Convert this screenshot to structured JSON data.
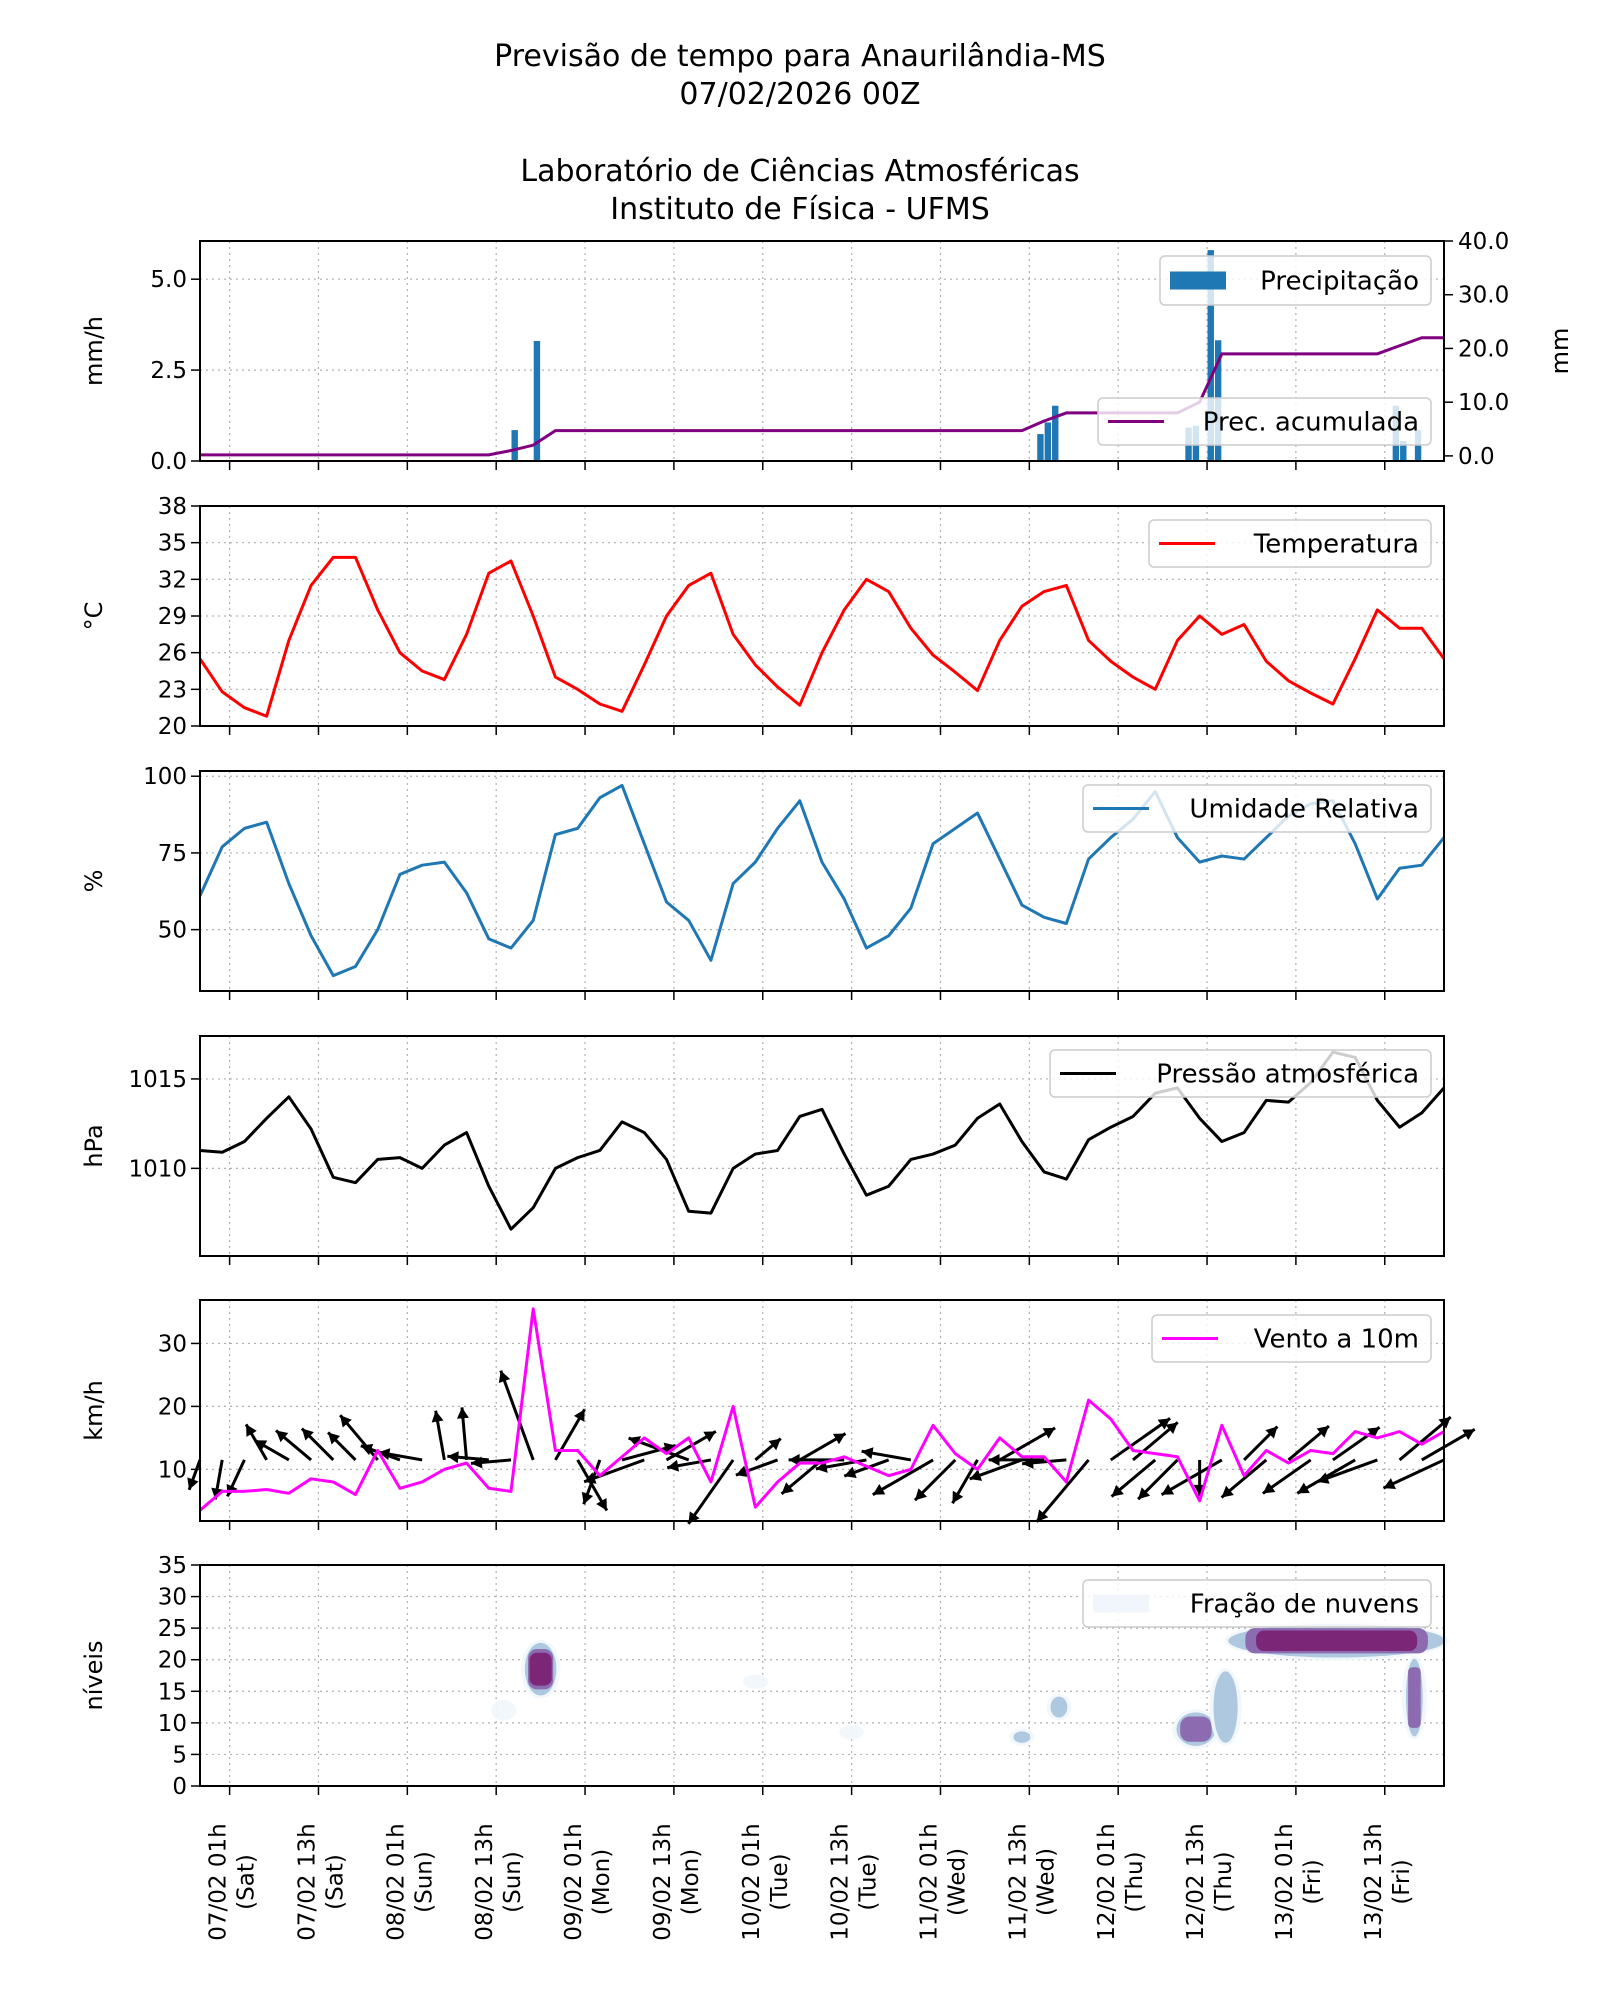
{
  "header": {
    "title_line1": "Previsão de tempo para Anaurilândia-MS",
    "title_line2": "07/02/2026 00Z",
    "title_line3": "Laboratório de Ciências Atmosféricas",
    "title_line4": "Instituto de Física - UFMS"
  },
  "x_axis": {
    "ticks": [
      "07/02 01h",
      "07/02 13h",
      "08/02 01h",
      "08/02 13h",
      "09/02 01h",
      "09/02 13h",
      "10/02 01h",
      "10/02 13h",
      "11/02 01h",
      "11/02 13h",
      "12/02 01h",
      "12/02 13h",
      "13/02 01h",
      "13/02 13h"
    ],
    "tick_days": [
      "(Sat)",
      "(Sat)",
      "(Sun)",
      "(Sun)",
      "(Mon)",
      "(Mon)",
      "(Tue)",
      "(Tue)",
      "(Wed)",
      "(Wed)",
      "(Thu)",
      "(Thu)",
      "(Fri)",
      "(Fri)"
    ],
    "range": [
      "06/02 21h",
      "13/02 21h"
    ],
    "grid": true
  },
  "times": [
    "06/02 21h",
    "07/02 00h",
    "07/02 03h",
    "07/02 06h",
    "07/02 09h",
    "07/02 12h",
    "07/02 15h",
    "07/02 18h",
    "07/02 21h",
    "08/02 00h",
    "08/02 03h",
    "08/02 06h",
    "08/02 09h",
    "08/02 12h",
    "08/02 15h",
    "08/02 18h",
    "08/02 21h",
    "09/02 00h",
    "09/02 03h",
    "09/02 06h",
    "09/02 09h",
    "09/02 12h",
    "09/02 15h",
    "09/02 18h",
    "09/02 21h",
    "10/02 00h",
    "10/02 03h",
    "10/02 06h",
    "10/02 09h",
    "10/02 12h",
    "10/02 15h",
    "10/02 18h",
    "10/02 21h",
    "11/02 00h",
    "11/02 03h",
    "11/02 06h",
    "11/02 09h",
    "11/02 12h",
    "11/02 15h",
    "11/02 18h",
    "11/02 21h",
    "12/02 00h",
    "12/02 03h",
    "12/02 06h",
    "12/02 09h",
    "12/02 12h",
    "12/02 15h",
    "12/02 18h",
    "12/02 21h",
    "13/02 00h",
    "13/02 03h",
    "13/02 06h",
    "13/02 09h",
    "13/02 12h",
    "13/02 15h",
    "13/02 18h",
    "13/02 21h"
  ],
  "chart_data": [
    {
      "type": "bar",
      "ylabel": "mm/h",
      "ylim": [
        0,
        6.05
      ],
      "yticks": [
        0,
        2.5,
        5.0
      ],
      "ytick_labels": [
        "0.0",
        "2.5",
        "5.0"
      ],
      "right_ylabel": "mm",
      "right_ylim": [
        -0.95,
        40
      ],
      "right_yticks": [
        0,
        10,
        20,
        30,
        40
      ],
      "right_ytick_labels": [
        "0.0",
        "10.0",
        "20.0",
        "30.0",
        "40.0"
      ],
      "bars": {
        "name": "Precipitação",
        "color": "#1f77b4",
        "times": [
          "08/02 15h",
          "08/02 18h",
          "11/02 14h",
          "11/02 15h",
          "11/02 16h",
          "12/02 10h",
          "12/02 11h",
          "12/02 13h",
          "12/02 14h",
          "13/02 14h",
          "13/02 15h",
          "13/02 17h"
        ],
        "values": [
          0.85,
          3.3,
          0.74,
          1.06,
          1.52,
          0.92,
          0.97,
          5.8,
          3.32,
          1.52,
          0.55,
          0.85
        ]
      },
      "line": {
        "name": "Prec. acumulada",
        "color": "#800080",
        "axis": "right",
        "values": [
          0.2,
          0.2,
          0.2,
          0.2,
          0.2,
          0.2,
          0.2,
          0.2,
          0.2,
          0.2,
          0.2,
          0.2,
          0.2,
          0.2,
          1.0,
          2.0,
          4.7,
          4.7,
          4.7,
          4.7,
          4.7,
          4.7,
          4.7,
          4.7,
          4.7,
          4.7,
          4.7,
          4.7,
          4.7,
          4.7,
          4.7,
          4.7,
          4.7,
          4.7,
          4.7,
          4.7,
          4.7,
          4.7,
          6.5,
          8.0,
          8.0,
          8.0,
          8.0,
          8.0,
          8.0,
          10.0,
          19.0,
          19.0,
          19.0,
          19.0,
          19.0,
          19.0,
          19.0,
          19.0,
          20.5,
          22.0,
          22.0
        ]
      }
    },
    {
      "type": "line",
      "ylabel": "°C",
      "ylim": [
        20,
        38
      ],
      "yticks": [
        20,
        23,
        26,
        29,
        32,
        35,
        38
      ],
      "ytick_labels": [
        "20",
        "23",
        "26",
        "29",
        "32",
        "35",
        "38"
      ],
      "series": [
        {
          "name": "Temperatura",
          "color": "#ff0000",
          "values": [
            25.5,
            22.8,
            21.5,
            20.8,
            27,
            31.5,
            33.8,
            33.8,
            29.5,
            26,
            24.5,
            23.8,
            27.5,
            32.5,
            33.5,
            29,
            24,
            23,
            21.8,
            21.2,
            25,
            29,
            31.5,
            32.5,
            27.5,
            25,
            23.2,
            21.7,
            26,
            29.5,
            32,
            31,
            28,
            25.8,
            24.4,
            22.9,
            27,
            29.8,
            31,
            31.5,
            27,
            25.3,
            24,
            23,
            27,
            29,
            27.5,
            28.3,
            25.3,
            23.7,
            22.7,
            21.8,
            25.5,
            29.5,
            28,
            28,
            25.5
          ]
        }
      ]
    },
    {
      "type": "line",
      "ylabel": "%",
      "ylim": [
        30,
        101.7
      ],
      "yticks": [
        50,
        75,
        100
      ],
      "ytick_labels": [
        "50",
        "75",
        "100"
      ],
      "series": [
        {
          "name": "Umidade Relativa",
          "color": "#1f77b4",
          "values": [
            61,
            77,
            83,
            85,
            65,
            48,
            35,
            38,
            50,
            68,
            71,
            72,
            62,
            47,
            44,
            53,
            81,
            83,
            93,
            97,
            78,
            59,
            53,
            40,
            65,
            72,
            83,
            92,
            72,
            60,
            44,
            48,
            57,
            78,
            83,
            88,
            73,
            58,
            54,
            52,
            73,
            80,
            86,
            95,
            80,
            72,
            74,
            73,
            80,
            87,
            91,
            92,
            78,
            60,
            70,
            71,
            80
          ]
        }
      ]
    },
    {
      "type": "line",
      "ylabel": "hPa",
      "ylim": [
        1005.1,
        1017.4
      ],
      "yticks": [
        1010,
        1015
      ],
      "ytick_labels": [
        "1010",
        "1015"
      ],
      "series": [
        {
          "name": "Pressão atmosférica",
          "color": "#000000",
          "values": [
            1011,
            1010.9,
            1011.5,
            1012.8,
            1014,
            1012.2,
            1009.5,
            1009.2,
            1010.5,
            1010.6,
            1010,
            1011.3,
            1012,
            1009,
            1006.6,
            1007.8,
            1010,
            1010.6,
            1011,
            1012.6,
            1012,
            1010.5,
            1007.6,
            1007.5,
            1010,
            1010.8,
            1011,
            1012.9,
            1013.3,
            1010.8,
            1008.5,
            1009,
            1010.5,
            1010.8,
            1011.3,
            1012.8,
            1013.6,
            1011.5,
            1009.8,
            1009.4,
            1011.6,
            1012.3,
            1012.9,
            1014.2,
            1014.5,
            1012.8,
            1011.5,
            1012,
            1013.8,
            1013.7,
            1014.8,
            1016.5,
            1016.2,
            1013.8,
            1012.3,
            1013.1,
            1014.5
          ]
        }
      ]
    },
    {
      "type": "line",
      "ylabel": "km/h",
      "ylim": [
        1.8,
        36.9
      ],
      "yticks": [
        10,
        20,
        30
      ],
      "ytick_labels": [
        "10",
        "20",
        "30"
      ],
      "series": [
        {
          "name": "Vento a 10m",
          "color": "#ff00ff",
          "values": [
            3.5,
            6.5,
            6.5,
            6.8,
            6.2,
            8.5,
            8,
            6,
            13,
            7,
            8,
            10,
            11,
            7,
            6.5,
            35.5,
            13,
            13,
            9,
            12,
            15,
            12.5,
            15,
            8,
            20,
            4,
            8,
            11,
            11,
            12,
            10.5,
            9,
            10,
            17,
            12.5,
            10,
            15,
            12,
            12,
            8,
            21,
            18,
            13,
            12.5,
            12,
            5,
            17,
            9,
            13,
            11,
            13,
            12.5,
            16,
            15,
            16,
            14,
            16
          ]
        }
      ],
      "wind_arrows": {
        "color": "#000000",
        "direction_deg": [
          250,
          260,
          245,
          120,
          150,
          140,
          135,
          135,
          130,
          160,
          170,
          100,
          95,
          175,
          185,
          110,
          60,
          300,
          250,
          15,
          200,
          30,
          160,
          190,
          235,
          40,
          200,
          30,
          220,
          180,
          190,
          200,
          170,
          210,
          225,
          240,
          30,
          200,
          180,
          185,
          230,
          35,
          40,
          220,
          225,
          270,
          210,
          45,
          220,
          40,
          215,
          35,
          210,
          200,
          40,
          30,
          205
        ]
      }
    },
    {
      "type": "heatmap",
      "ylabel": "níveis",
      "ylim": [
        0,
        35
      ],
      "yticks": [
        0,
        5,
        10,
        15,
        20,
        25,
        30,
        35
      ],
      "ytick_labels": [
        "0",
        "5",
        "10",
        "15",
        "20",
        "25",
        "30",
        "35"
      ],
      "legend": "Fração de nuvens",
      "colormap": [
        "#f0f6fb",
        "#9ebcda",
        "#8c6bb1",
        "#7a1f72"
      ],
      "cloud_regions": [
        {
          "start": "08/02 17h",
          "end": "08/02 21h",
          "bottom": 14.5,
          "top": 22.5,
          "fraction": 0.9
        },
        {
          "start": "12/02 16h",
          "end": "13/02 21h",
          "bottom": 20.5,
          "top": 25.5,
          "fraction": 0.9
        },
        {
          "start": "12/02 09h",
          "end": "12/02 14h",
          "bottom": 6.5,
          "top": 11.5,
          "fraction": 0.6
        },
        {
          "start": "12/02 14h",
          "end": "12/02 17h",
          "bottom": 7,
          "top": 18,
          "fraction": 0.25
        },
        {
          "start": "13/02 16h",
          "end": "13/02 18h",
          "bottom": 8,
          "top": 20,
          "fraction": 0.45
        },
        {
          "start": "11/02 16h",
          "end": "11/02 18h",
          "bottom": 11,
          "top": 14,
          "fraction": 0.2
        },
        {
          "start": "11/02 11h",
          "end": "11/02 13h",
          "bottom": 7,
          "top": 8.5,
          "fraction": 0.15
        },
        {
          "start": "08/02 13h",
          "end": "08/02 15h",
          "bottom": 11,
          "top": 13,
          "fraction": 0.05
        },
        {
          "start": "10/02 12h",
          "end": "10/02 14h",
          "bottom": 8,
          "top": 9,
          "fraction": 0.05
        },
        {
          "start": "09/02 23h",
          "end": "10/02 01h",
          "bottom": 16,
          "top": 17,
          "fraction": 0.05
        }
      ]
    }
  ]
}
